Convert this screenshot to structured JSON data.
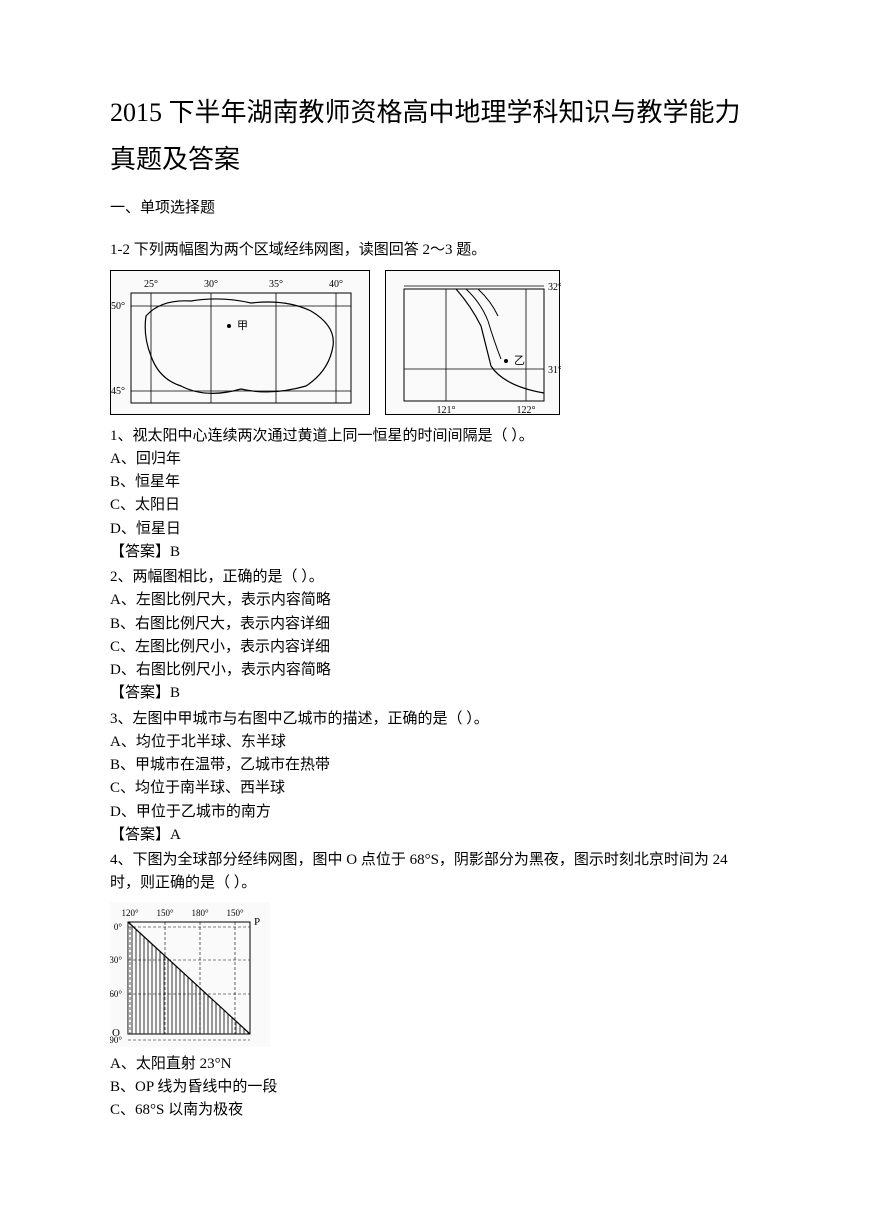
{
  "title": "2015 下半年湖南教师资格高中地理学科知识与教学能力真题及答案",
  "section1": "一、单项选择题",
  "intro12": "1-2 下列两幅图为两个区域经纬网图，读图回答 2～3 题。",
  "fig1": {
    "lon_labels": [
      "25°",
      "30°",
      "35°",
      "40°"
    ],
    "lat_labels": [
      "50°",
      "45°"
    ],
    "lon_positions": [
      40,
      100,
      165,
      225
    ],
    "lat_positions": [
      35,
      120
    ],
    "marker_label": "甲"
  },
  "fig2": {
    "lon_labels": [
      "121°",
      "122°"
    ],
    "lat_labels": [
      "32°",
      "31°"
    ],
    "lon_positions": [
      60,
      140
    ],
    "lat_positions": [
      15,
      98
    ],
    "marker_label": "乙"
  },
  "q1": {
    "stem": "1、视太阳中心连续两次通过黄道上同一恒星的时间间隔是（ ）。",
    "opts": [
      "A、回归年",
      "B、恒星年",
      "C、太阳日",
      "D、恒星日"
    ],
    "ans": "【答案】B"
  },
  "q2": {
    "stem": "2、两幅图相比，正确的是（ ）。",
    "opts": [
      "A、左图比例尺大，表示内容简略",
      "B、右图比例尺大，表示内容详细",
      "C、左图比例尺小，表示内容详细",
      "D、右图比例尺小，表示内容简略"
    ],
    "ans": "【答案】B"
  },
  "q3": {
    "stem": "3、左图中甲城市与右图中乙城市的描述，正确的是（ ）。",
    "opts": [
      "A、均位于北半球、东半球",
      "B、甲城市在温带，乙城市在热带",
      "C、均位于南半球、西半球",
      "D、甲位于乙城市的南方"
    ],
    "ans": "【答案】A"
  },
  "q4": {
    "stem": "4、下图为全球部分经纬网图，图中 O 点位于 68°S，阴影部分为黑夜，图示时刻北京时间为 24 时，则正确的是（ ）。",
    "opts": [
      "A、太阳直射 23°N",
      "B、OP 线为昏线中的一段",
      "C、68°S 以南为极夜"
    ]
  },
  "fig3": {
    "lon_labels": [
      "120°",
      "150°",
      "180°",
      "150°"
    ],
    "lat_labels": [
      "0°",
      "30°",
      "60°",
      "90°"
    ],
    "lon_positions": [
      20,
      55,
      90,
      125
    ],
    "lat_positions": [
      25,
      58,
      92,
      138
    ],
    "p_label": "P",
    "o_label": "O"
  },
  "colors": {
    "line": "#000000",
    "text": "#000000",
    "hatch": "#333333"
  }
}
